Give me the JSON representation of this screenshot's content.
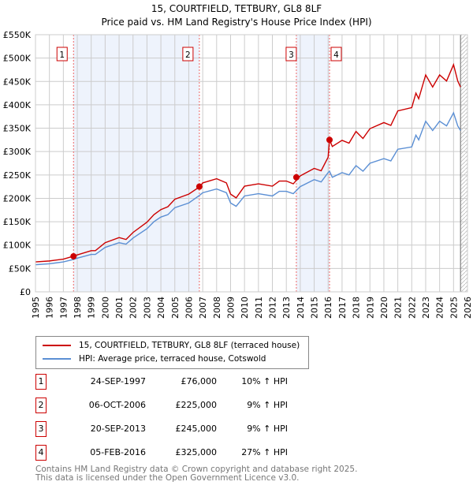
{
  "chart_data": {
    "type": "line",
    "title": "15, COURTFIELD, TETBURY, GL8 8LF",
    "subtitle": "Price paid vs. HM Land Registry's House Price Index (HPI)",
    "xlim": [
      1995,
      2026
    ],
    "ylim": [
      0,
      550000
    ],
    "y_ticks": [
      {
        "v": 0,
        "label": "£0"
      },
      {
        "v": 50000,
        "label": "£50K"
      },
      {
        "v": 100000,
        "label": "£100K"
      },
      {
        "v": 150000,
        "label": "£150K"
      },
      {
        "v": 200000,
        "label": "£200K"
      },
      {
        "v": 250000,
        "label": "£250K"
      },
      {
        "v": 300000,
        "label": "£300K"
      },
      {
        "v": 350000,
        "label": "£350K"
      },
      {
        "v": 400000,
        "label": "£400K"
      },
      {
        "v": 450000,
        "label": "£450K"
      },
      {
        "v": 500000,
        "label": "£500K"
      },
      {
        "v": 550000,
        "label": "£550K"
      }
    ],
    "x_ticks": [
      "1995",
      "1996",
      "1997",
      "1998",
      "1999",
      "2000",
      "2001",
      "2002",
      "2003",
      "2004",
      "2005",
      "2006",
      "2007",
      "2008",
      "2009",
      "2010",
      "2011",
      "2012",
      "2013",
      "2014",
      "2015",
      "2016",
      "2017",
      "2018",
      "2019",
      "2020",
      "2021",
      "2022",
      "2023",
      "2024",
      "2025",
      "2026"
    ],
    "grid": true,
    "x": [
      1995,
      1996,
      1996.5,
      1997,
      1997.7,
      1998,
      1999,
      1999.3,
      2000,
      2001,
      2001.5,
      2002,
      2003,
      2003.5,
      2004,
      2004.5,
      2005,
      2006,
      2006.8,
      2007,
      2008,
      2008.7,
      2009,
      2009.4,
      2010,
      2011,
      2012,
      2012.5,
      2013,
      2013.5,
      2014,
      2015,
      2015.5,
      2016.0,
      2016.1,
      2016.3,
      2017,
      2017.5,
      2018,
      2018.5,
      2019,
      2020,
      2020.5,
      2021,
      2022,
      2022.3,
      2022.5,
      2023,
      2023.5,
      2024,
      2024.5,
      2025,
      2025.3,
      2025.5
    ],
    "series": [
      {
        "name": "15, COURTFIELD, TETBURY, GL8 8LF (terraced house)",
        "color": "#cc0000",
        "values": [
          64000,
          66000,
          68000,
          70000,
          76000,
          79000,
          88000,
          88000,
          105000,
          116000,
          112000,
          127000,
          149000,
          165000,
          176000,
          182000,
          198000,
          209000,
          225000,
          233000,
          242000,
          233000,
          209000,
          201000,
          226000,
          231000,
          226000,
          237000,
          237000,
          231000,
          248000,
          264000,
          259000,
          288000,
          325000,
          311000,
          324000,
          318000,
          343000,
          328000,
          349000,
          362000,
          356000,
          387000,
          394000,
          425000,
          413000,
          464000,
          438000,
          464000,
          451000,
          486000,
          451000,
          438000
        ]
      },
      {
        "name": "HPI: Average price, terraced house, Cotswold",
        "color": "#5b8fd4",
        "values": [
          58000,
          60000,
          62000,
          64000,
          69000,
          72000,
          80000,
          80000,
          95000,
          105000,
          102000,
          115000,
          135000,
          150000,
          160000,
          165000,
          180000,
          190000,
          207000,
          212000,
          220000,
          212000,
          190000,
          183000,
          205000,
          210000,
          205000,
          215000,
          215000,
          210000,
          225000,
          240000,
          235000,
          255000,
          258000,
          245000,
          255000,
          250000,
          270000,
          258000,
          275000,
          285000,
          280000,
          305000,
          310000,
          335000,
          325000,
          365000,
          345000,
          365000,
          355000,
          383000,
          355000,
          345000
        ]
      }
    ],
    "sales": [
      {
        "n": "1",
        "t": 1997.73,
        "price": 76000,
        "date": "24-SEP-1997",
        "price_label": "£76,000",
        "hpi": "10% ↑ HPI"
      },
      {
        "n": "2",
        "t": 2006.76,
        "price": 225000,
        "date": "06-OCT-2006",
        "price_label": "£225,000",
        "hpi": "9% ↑ HPI"
      },
      {
        "n": "3",
        "t": 2013.72,
        "price": 245000,
        "date": "20-SEP-2013",
        "price_label": "£245,000",
        "hpi": "9% ↑ HPI"
      },
      {
        "n": "4",
        "t": 2016.1,
        "price": 325000,
        "date": "05-FEB-2016",
        "price_label": "£325,000",
        "hpi": "27% ↑ HPI"
      }
    ],
    "shaded_ranges": [
      [
        1997.73,
        2006.76
      ],
      [
        2013.72,
        2016.1
      ]
    ],
    "forecast_from": 2025.5
  },
  "footer": {
    "line1": "Contains HM Land Registry data © Crown copyright and database right 2025.",
    "line2": "This data is licensed under the Open Government Licence v3.0."
  }
}
